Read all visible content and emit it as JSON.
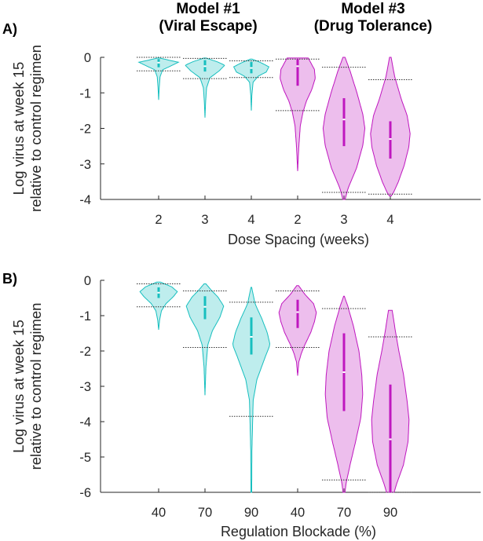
{
  "headers": [
    {
      "line1": "Model #1",
      "line2": "(Viral Escape)"
    },
    {
      "line1": "Model #3",
      "line2": "(Drug Tolerance)"
    }
  ],
  "colors": {
    "model1": "#17bfbf",
    "model3": "#bf17bf",
    "axis": "#262626"
  },
  "chart_data": [
    {
      "type": "violin",
      "panel_label": "A)",
      "ylabel_line1": "Log virus at week 15",
      "ylabel_line2": "relative to control regimen",
      "xlabel": "Dose Spacing (weeks)",
      "ylim": [
        -4,
        0
      ],
      "yticks": [
        "0",
        "-1",
        "-2",
        "-3",
        "-4"
      ],
      "ytick_values": [
        0,
        -1,
        -2,
        -3,
        -4
      ],
      "categories": [
        "2",
        "3",
        "4",
        "2",
        "3",
        "4"
      ],
      "violins": [
        {
          "model": "model1",
          "min": -1.2,
          "max": -0.02,
          "width": 0.9,
          "shape": [
            [
              0,
              0.06
            ],
            [
              0.06,
              0.6
            ],
            [
              0.1,
              1
            ],
            [
              0.17,
              0.7
            ],
            [
              0.28,
              0.2
            ],
            [
              0.45,
              0.07
            ],
            [
              0.7,
              0.03
            ],
            [
              1,
              0
            ]
          ],
          "box": [
            -0.28,
            -0.05
          ],
          "median": -0.15,
          "p_lo": -0.38,
          "p_hi": 0
        },
        {
          "model": "model1",
          "min": -1.7,
          "max": -0.02,
          "width": 0.9,
          "shape": [
            [
              0,
              0.05
            ],
            [
              0.06,
              0.6
            ],
            [
              0.12,
              1
            ],
            [
              0.22,
              0.7
            ],
            [
              0.33,
              0.25
            ],
            [
              0.5,
              0.08
            ],
            [
              0.75,
              0.03
            ],
            [
              1,
              0
            ]
          ],
          "box": [
            -0.4,
            -0.08
          ],
          "median": -0.25,
          "p_lo": -0.6,
          "p_hi": -0.03
        },
        {
          "model": "model1",
          "min": -1.5,
          "max": -0.05,
          "width": 0.8,
          "shape": [
            [
              0,
              0.05
            ],
            [
              0.07,
              0.55
            ],
            [
              0.15,
              1
            ],
            [
              0.25,
              0.85
            ],
            [
              0.33,
              0.4
            ],
            [
              0.45,
              0.1
            ],
            [
              0.7,
              0.03
            ],
            [
              1,
              0
            ]
          ],
          "box": [
            -0.45,
            -0.13
          ],
          "median": -0.3,
          "p_lo": -0.57,
          "p_hi": -0.1
        },
        {
          "model": "model3",
          "min": -3.2,
          "max": -0.02,
          "width": 0.8,
          "shape": [
            [
              0,
              0.6
            ],
            [
              0.1,
              0.95
            ],
            [
              0.18,
              1
            ],
            [
              0.28,
              0.8
            ],
            [
              0.38,
              0.5
            ],
            [
              0.48,
              0.3
            ],
            [
              0.6,
              0.15
            ],
            [
              0.8,
              0.06
            ],
            [
              1,
              0
            ]
          ],
          "box": [
            -0.8,
            -0.05
          ],
          "median": -0.25,
          "p_lo": -1.5,
          "p_hi": -0.05
        },
        {
          "model": "model3",
          "min": -4.0,
          "max": 0,
          "width": 0.95,
          "shape": [
            [
              0,
              0.05
            ],
            [
              0.1,
              0.3
            ],
            [
              0.25,
              0.62
            ],
            [
              0.4,
              0.9
            ],
            [
              0.5,
              1
            ],
            [
              0.62,
              0.9
            ],
            [
              0.78,
              0.6
            ],
            [
              0.92,
              0.2
            ],
            [
              1,
              0.05
            ]
          ],
          "box": [
            -2.5,
            -1.15
          ],
          "median": -1.75,
          "p_lo": -3.8,
          "p_hi": -0.28
        },
        {
          "model": "model3",
          "min": -3.9,
          "max": 0,
          "width": 0.9,
          "shape": [
            [
              0,
              0.04
            ],
            [
              0.14,
              0.22
            ],
            [
              0.3,
              0.55
            ],
            [
              0.42,
              0.85
            ],
            [
              0.55,
              1
            ],
            [
              0.65,
              0.93
            ],
            [
              0.78,
              0.7
            ],
            [
              0.9,
              0.4
            ],
            [
              0.97,
              0.18
            ],
            [
              1,
              0.05
            ]
          ],
          "box": [
            -2.85,
            -1.8
          ],
          "median": -2.3,
          "p_lo": -3.85,
          "p_hi": -0.63
        }
      ]
    },
    {
      "type": "violin",
      "panel_label": "B)",
      "ylabel_line1": "Log virus at week 15",
      "ylabel_line2": "relative to control regimen",
      "xlabel": "Regulation Blockade (%)",
      "ylim": [
        -6,
        0
      ],
      "yticks": [
        "0",
        "-1",
        "-2",
        "-3",
        "-4",
        "-5",
        "-6"
      ],
      "ytick_values": [
        0,
        -1,
        -2,
        -3,
        -4,
        -5,
        -6
      ],
      "categories": [
        "40",
        "70",
        "90",
        "40",
        "70",
        "90"
      ],
      "violins": [
        {
          "model": "model1",
          "min": -1.4,
          "max": -0.05,
          "width": 0.85,
          "shape": [
            [
              0,
              0.1
            ],
            [
              0.1,
              0.7
            ],
            [
              0.2,
              1
            ],
            [
              0.3,
              0.8
            ],
            [
              0.45,
              0.4
            ],
            [
              0.6,
              0.15
            ],
            [
              0.8,
              0.05
            ],
            [
              1,
              0
            ]
          ],
          "box": [
            -0.5,
            -0.2
          ],
          "median": -0.35,
          "p_lo": -0.75,
          "p_hi": -0.1
        },
        {
          "model": "model1",
          "min": -3.25,
          "max": -0.1,
          "width": 0.85,
          "shape": [
            [
              0,
              0.05
            ],
            [
              0.05,
              0.3
            ],
            [
              0.12,
              0.7
            ],
            [
              0.2,
              1
            ],
            [
              0.3,
              0.8
            ],
            [
              0.42,
              0.4
            ],
            [
              0.55,
              0.15
            ],
            [
              0.75,
              0.05
            ],
            [
              1,
              0
            ]
          ],
          "box": [
            -1.1,
            -0.45
          ],
          "median": -0.75,
          "p_lo": -1.9,
          "p_hi": -0.3
        },
        {
          "model": "model1",
          "min": -6.0,
          "max": -0.2,
          "width": 0.85,
          "shape": [
            [
              0,
              0.02
            ],
            [
              0.08,
              0.2
            ],
            [
              0.15,
              0.55
            ],
            [
              0.22,
              0.85
            ],
            [
              0.28,
              1
            ],
            [
              0.35,
              0.7
            ],
            [
              0.45,
              0.3
            ],
            [
              0.55,
              0.1
            ],
            [
              0.8,
              0.03
            ],
            [
              1,
              0.02
            ]
          ],
          "box": [
            -2.1,
            -1.05
          ],
          "median": -1.6,
          "p_lo": -3.85,
          "p_hi": -0.62
        },
        {
          "model": "model3",
          "min": -2.7,
          "max": -0.15,
          "width": 0.85,
          "shape": [
            [
              0,
              0.05
            ],
            [
              0.1,
              0.4
            ],
            [
              0.2,
              0.85
            ],
            [
              0.3,
              1
            ],
            [
              0.4,
              0.9
            ],
            [
              0.52,
              0.7
            ],
            [
              0.65,
              0.4
            ],
            [
              0.75,
              0.2
            ],
            [
              0.85,
              0.06
            ],
            [
              1,
              0
            ]
          ],
          "box": [
            -1.35,
            -0.55
          ],
          "median": -0.9,
          "p_lo": -1.9,
          "p_hi": -0.3
        },
        {
          "model": "model3",
          "min": -6.0,
          "max": -0.45,
          "width": 0.85,
          "shape": [
            [
              0,
              0.02
            ],
            [
              0.05,
              0.2
            ],
            [
              0.15,
              0.5
            ],
            [
              0.28,
              0.8
            ],
            [
              0.4,
              0.95
            ],
            [
              0.5,
              1
            ],
            [
              0.62,
              0.9
            ],
            [
              0.75,
              0.6
            ],
            [
              0.85,
              0.35
            ],
            [
              0.95,
              0.12
            ],
            [
              1,
              0.05
            ]
          ],
          "box": [
            -3.7,
            -1.5
          ],
          "median": -2.6,
          "p_lo": -5.65,
          "p_hi": -0.8
        },
        {
          "model": "model3",
          "min": -6.0,
          "max": -0.85,
          "width": 0.85,
          "shape": [
            [
              0,
              0.1
            ],
            [
              0.1,
              0.25
            ],
            [
              0.22,
              0.45
            ],
            [
              0.35,
              0.7
            ],
            [
              0.5,
              0.9
            ],
            [
              0.6,
              1
            ],
            [
              0.72,
              0.95
            ],
            [
              0.85,
              0.7
            ],
            [
              0.95,
              0.35
            ],
            [
              1,
              0.2
            ]
          ],
          "box": [
            -6,
            -2.95
          ],
          "median": -4.5,
          "p_lo": -6.0,
          "p_hi": -1.6
        }
      ]
    }
  ]
}
